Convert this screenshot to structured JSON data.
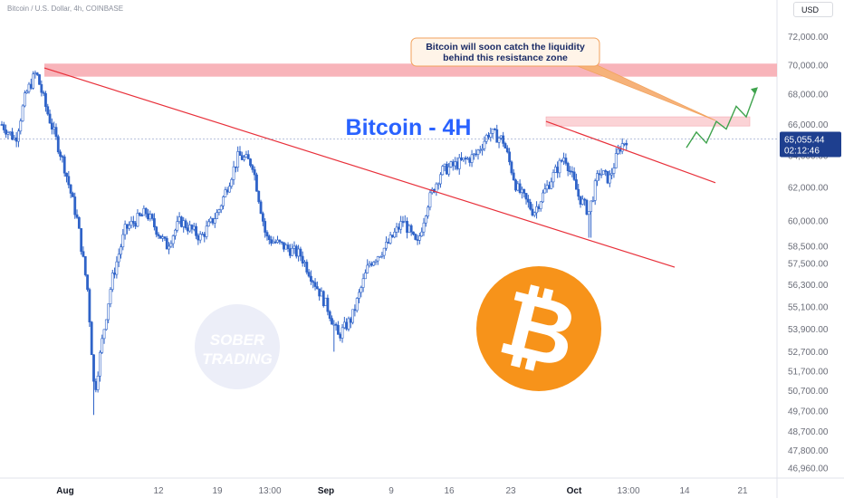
{
  "header": {
    "symbol_title": "Bitcoin / U.S. Dollar, 4h, COINBASE",
    "currency_button": "USD"
  },
  "colors": {
    "candle": "#2f63c8",
    "trendline": "#e8303a",
    "resistance_zone": "#f7a7ae",
    "target_zone": "#fbd3d6",
    "projection": "#3fa34d",
    "bitcoin_logo": "#f7931a",
    "price_label_bg": "#1e3f8f",
    "callout_border": "#f2a25c",
    "callout_bg": "#fff4e8",
    "title_text": "#2962ff"
  },
  "chart_data": {
    "type": "candlestick",
    "title": "Bitcoin - 4H",
    "annotation": "Bitcoin will soon catch the liquidity behind this resistance zone",
    "watermark": "SOBER TRADING",
    "y_axis": {
      "labels": [
        "72,000.00",
        "70,000.00",
        "68,000.00",
        "66,000.00",
        "64,000.00",
        "62,000.00",
        "60,000.00",
        "58,500.00",
        "57,500.00",
        "56,300.00",
        "55,100.00",
        "53,900.00",
        "52,700.00",
        "51,700.00",
        "50,700.00",
        "49,700.00",
        "48,700.00",
        "47,800.00",
        "46,960.00"
      ],
      "scale": "log",
      "range": [
        46500,
        73200
      ]
    },
    "x_axis": {
      "labels": [
        "Aug",
        "12",
        "19",
        "13:00",
        "Sep",
        "9",
        "16",
        "23",
        "Oct",
        "13:00",
        "14",
        "21"
      ],
      "bold_labels": [
        "Aug",
        "Sep",
        "Oct"
      ]
    },
    "last_price": "65,055.44",
    "countdown": "02:12:46",
    "price_path": [
      {
        "t": 0,
        "p": 66000
      },
      {
        "t": 0.02,
        "p": 65000
      },
      {
        "t": 0.035,
        "p": 68000
      },
      {
        "t": 0.05,
        "p": 69500
      },
      {
        "t": 0.065,
        "p": 67000
      },
      {
        "t": 0.09,
        "p": 63500
      },
      {
        "t": 0.11,
        "p": 60000
      },
      {
        "t": 0.125,
        "p": 56000
      },
      {
        "t": 0.135,
        "p": 50500
      },
      {
        "t": 0.145,
        "p": 53000
      },
      {
        "t": 0.16,
        "p": 56500
      },
      {
        "t": 0.18,
        "p": 59500
      },
      {
        "t": 0.21,
        "p": 60500
      },
      {
        "t": 0.24,
        "p": 58500
      },
      {
        "t": 0.26,
        "p": 60000
      },
      {
        "t": 0.29,
        "p": 59000
      },
      {
        "t": 0.315,
        "p": 60500
      },
      {
        "t": 0.345,
        "p": 64000
      },
      {
        "t": 0.365,
        "p": 63500
      },
      {
        "t": 0.385,
        "p": 59000
      },
      {
        "t": 0.41,
        "p": 58500
      },
      {
        "t": 0.435,
        "p": 58000
      },
      {
        "t": 0.455,
        "p": 56500
      },
      {
        "t": 0.475,
        "p": 55000
      },
      {
        "t": 0.49,
        "p": 53500
      },
      {
        "t": 0.51,
        "p": 54500
      },
      {
        "t": 0.535,
        "p": 57500
      },
      {
        "t": 0.56,
        "p": 58500
      },
      {
        "t": 0.585,
        "p": 60000
      },
      {
        "t": 0.605,
        "p": 58500
      },
      {
        "t": 0.62,
        "p": 61000
      },
      {
        "t": 0.64,
        "p": 63000
      },
      {
        "t": 0.665,
        "p": 63500
      },
      {
        "t": 0.69,
        "p": 64000
      },
      {
        "t": 0.71,
        "p": 65500
      },
      {
        "t": 0.73,
        "p": 65000
      },
      {
        "t": 0.75,
        "p": 62000
      },
      {
        "t": 0.775,
        "p": 60500
      },
      {
        "t": 0.8,
        "p": 62500
      },
      {
        "t": 0.82,
        "p": 64000
      },
      {
        "t": 0.84,
        "p": 61500
      },
      {
        "t": 0.855,
        "p": 60500
      },
      {
        "t": 0.87,
        "p": 63000
      },
      {
        "t": 0.885,
        "p": 62500
      },
      {
        "t": 0.9,
        "p": 64500
      },
      {
        "t": 0.91,
        "p": 65055
      }
    ],
    "spikes": [
      {
        "t": 0.133,
        "p": 49500
      },
      {
        "t": 0.485,
        "p": 52700
      },
      {
        "t": 0.857,
        "p": 59000
      }
    ],
    "resistance_zone": {
      "from": 69200,
      "to": 70100
    },
    "target_zone": {
      "from": 65900,
      "to": 66500
    },
    "projection_path": [
      64500,
      65500,
      64800,
      66200,
      65700,
      67200,
      66500,
      68300
    ]
  }
}
